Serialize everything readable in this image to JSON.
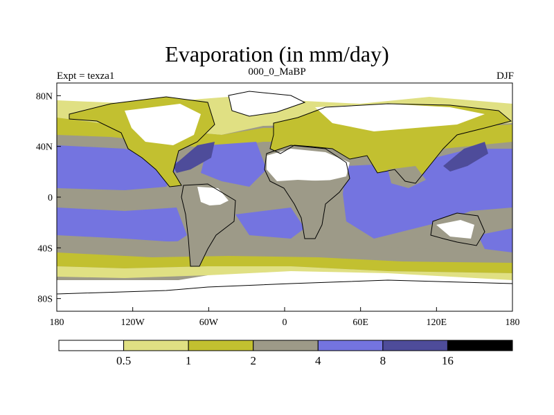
{
  "title": "Evaporation (in mm/day)",
  "subtitle_left": "Expt = texza1",
  "subtitle_center": "000_0_MaBP",
  "subtitle_right": "DJF",
  "colors": {
    "c0": "#ffffff",
    "c1": "#e0e083",
    "c2": "#c2c030",
    "c3": "#9d9a88",
    "c4": "#7474e0",
    "c5": "#4e4c9a",
    "c6": "#000000",
    "land": "#000000"
  },
  "map": {
    "projection": "cylindrical-equidistant",
    "lon_range": [
      -180,
      180
    ],
    "lat_range": [
      -90,
      90
    ],
    "x_ticks": [
      {
        "lon": -180,
        "label": "180"
      },
      {
        "lon": -120,
        "label": "120W"
      },
      {
        "lon": -60,
        "label": "60W"
      },
      {
        "lon": 0,
        "label": "0"
      },
      {
        "lon": 60,
        "label": "60E"
      },
      {
        "lon": 120,
        "label": "120E"
      },
      {
        "lon": 180,
        "label": "180"
      }
    ],
    "y_ticks": [
      {
        "lat": 80,
        "label": "80N"
      },
      {
        "lat": 40,
        "label": "40N"
      },
      {
        "lat": 0,
        "label": "0"
      },
      {
        "lat": -40,
        "label": "40S"
      },
      {
        "lat": -80,
        "label": "80S"
      }
    ]
  },
  "colorbar": {
    "levels": [
      "0.5",
      "1",
      "2",
      "4",
      "8",
      "16"
    ],
    "bins": 7
  }
}
